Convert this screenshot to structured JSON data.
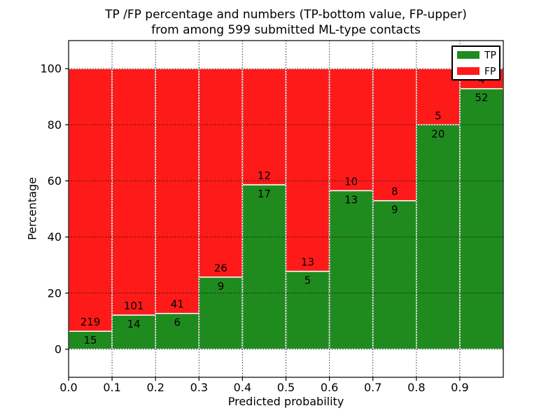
{
  "title": {
    "line1": "TP /FP percentage and numbers (TP-bottom value, FP-upper)",
    "line2": "from among 599 submitted ML-type contacts"
  },
  "chart_data": {
    "type": "bar",
    "stacked": true,
    "normalized_to_percent": true,
    "title": "TP /FP percentage and numbers (TP-bottom value, FP-upper) from among 599 submitted ML-type contacts",
    "xlabel": "Predicted probability",
    "ylabel": "Percentage",
    "total_contacts": 599,
    "bin_edges": [
      0.0,
      0.1,
      0.2,
      0.3,
      0.4,
      0.5,
      0.6,
      0.7,
      0.8,
      0.9,
      1.0
    ],
    "series": [
      {
        "name": "TP",
        "color": "#1f8b1f",
        "values": [
          15,
          14,
          6,
          9,
          17,
          5,
          13,
          9,
          20,
          52
        ]
      },
      {
        "name": "FP",
        "color": "#ff1a1a",
        "values": [
          219,
          101,
          41,
          26,
          12,
          13,
          10,
          8,
          5,
          4
        ]
      }
    ],
    "tp_percent_per_bin": [
      6.41,
      12.17,
      12.77,
      25.71,
      58.62,
      27.78,
      56.52,
      52.94,
      80.0,
      92.86
    ],
    "xlim": [
      0.0,
      1.0
    ],
    "ylim": [
      -10,
      110
    ],
    "xticks": [
      "0.0",
      "0.1",
      "0.2",
      "0.3",
      "0.4",
      "0.5",
      "0.6",
      "0.7",
      "0.8",
      "0.9"
    ],
    "xtick_values": [
      0.0,
      0.1,
      0.2,
      0.3,
      0.4,
      0.5,
      0.6,
      0.7,
      0.8,
      0.9
    ],
    "yticks": [
      0,
      20,
      40,
      60,
      80,
      100
    ],
    "xgrid_values": [
      0.1,
      0.2,
      0.3,
      0.4,
      0.5,
      0.6,
      0.7,
      0.8,
      0.9
    ],
    "grid": "dotted",
    "grid_color": "#000000",
    "bar_edge_color": "#ffffff",
    "axes_color": "#000000",
    "legend": {
      "position": "upper right",
      "entries": [
        {
          "label": "TP",
          "color": "#1f8b1f"
        },
        {
          "label": "FP",
          "color": "#ff1a1a"
        }
      ]
    }
  }
}
